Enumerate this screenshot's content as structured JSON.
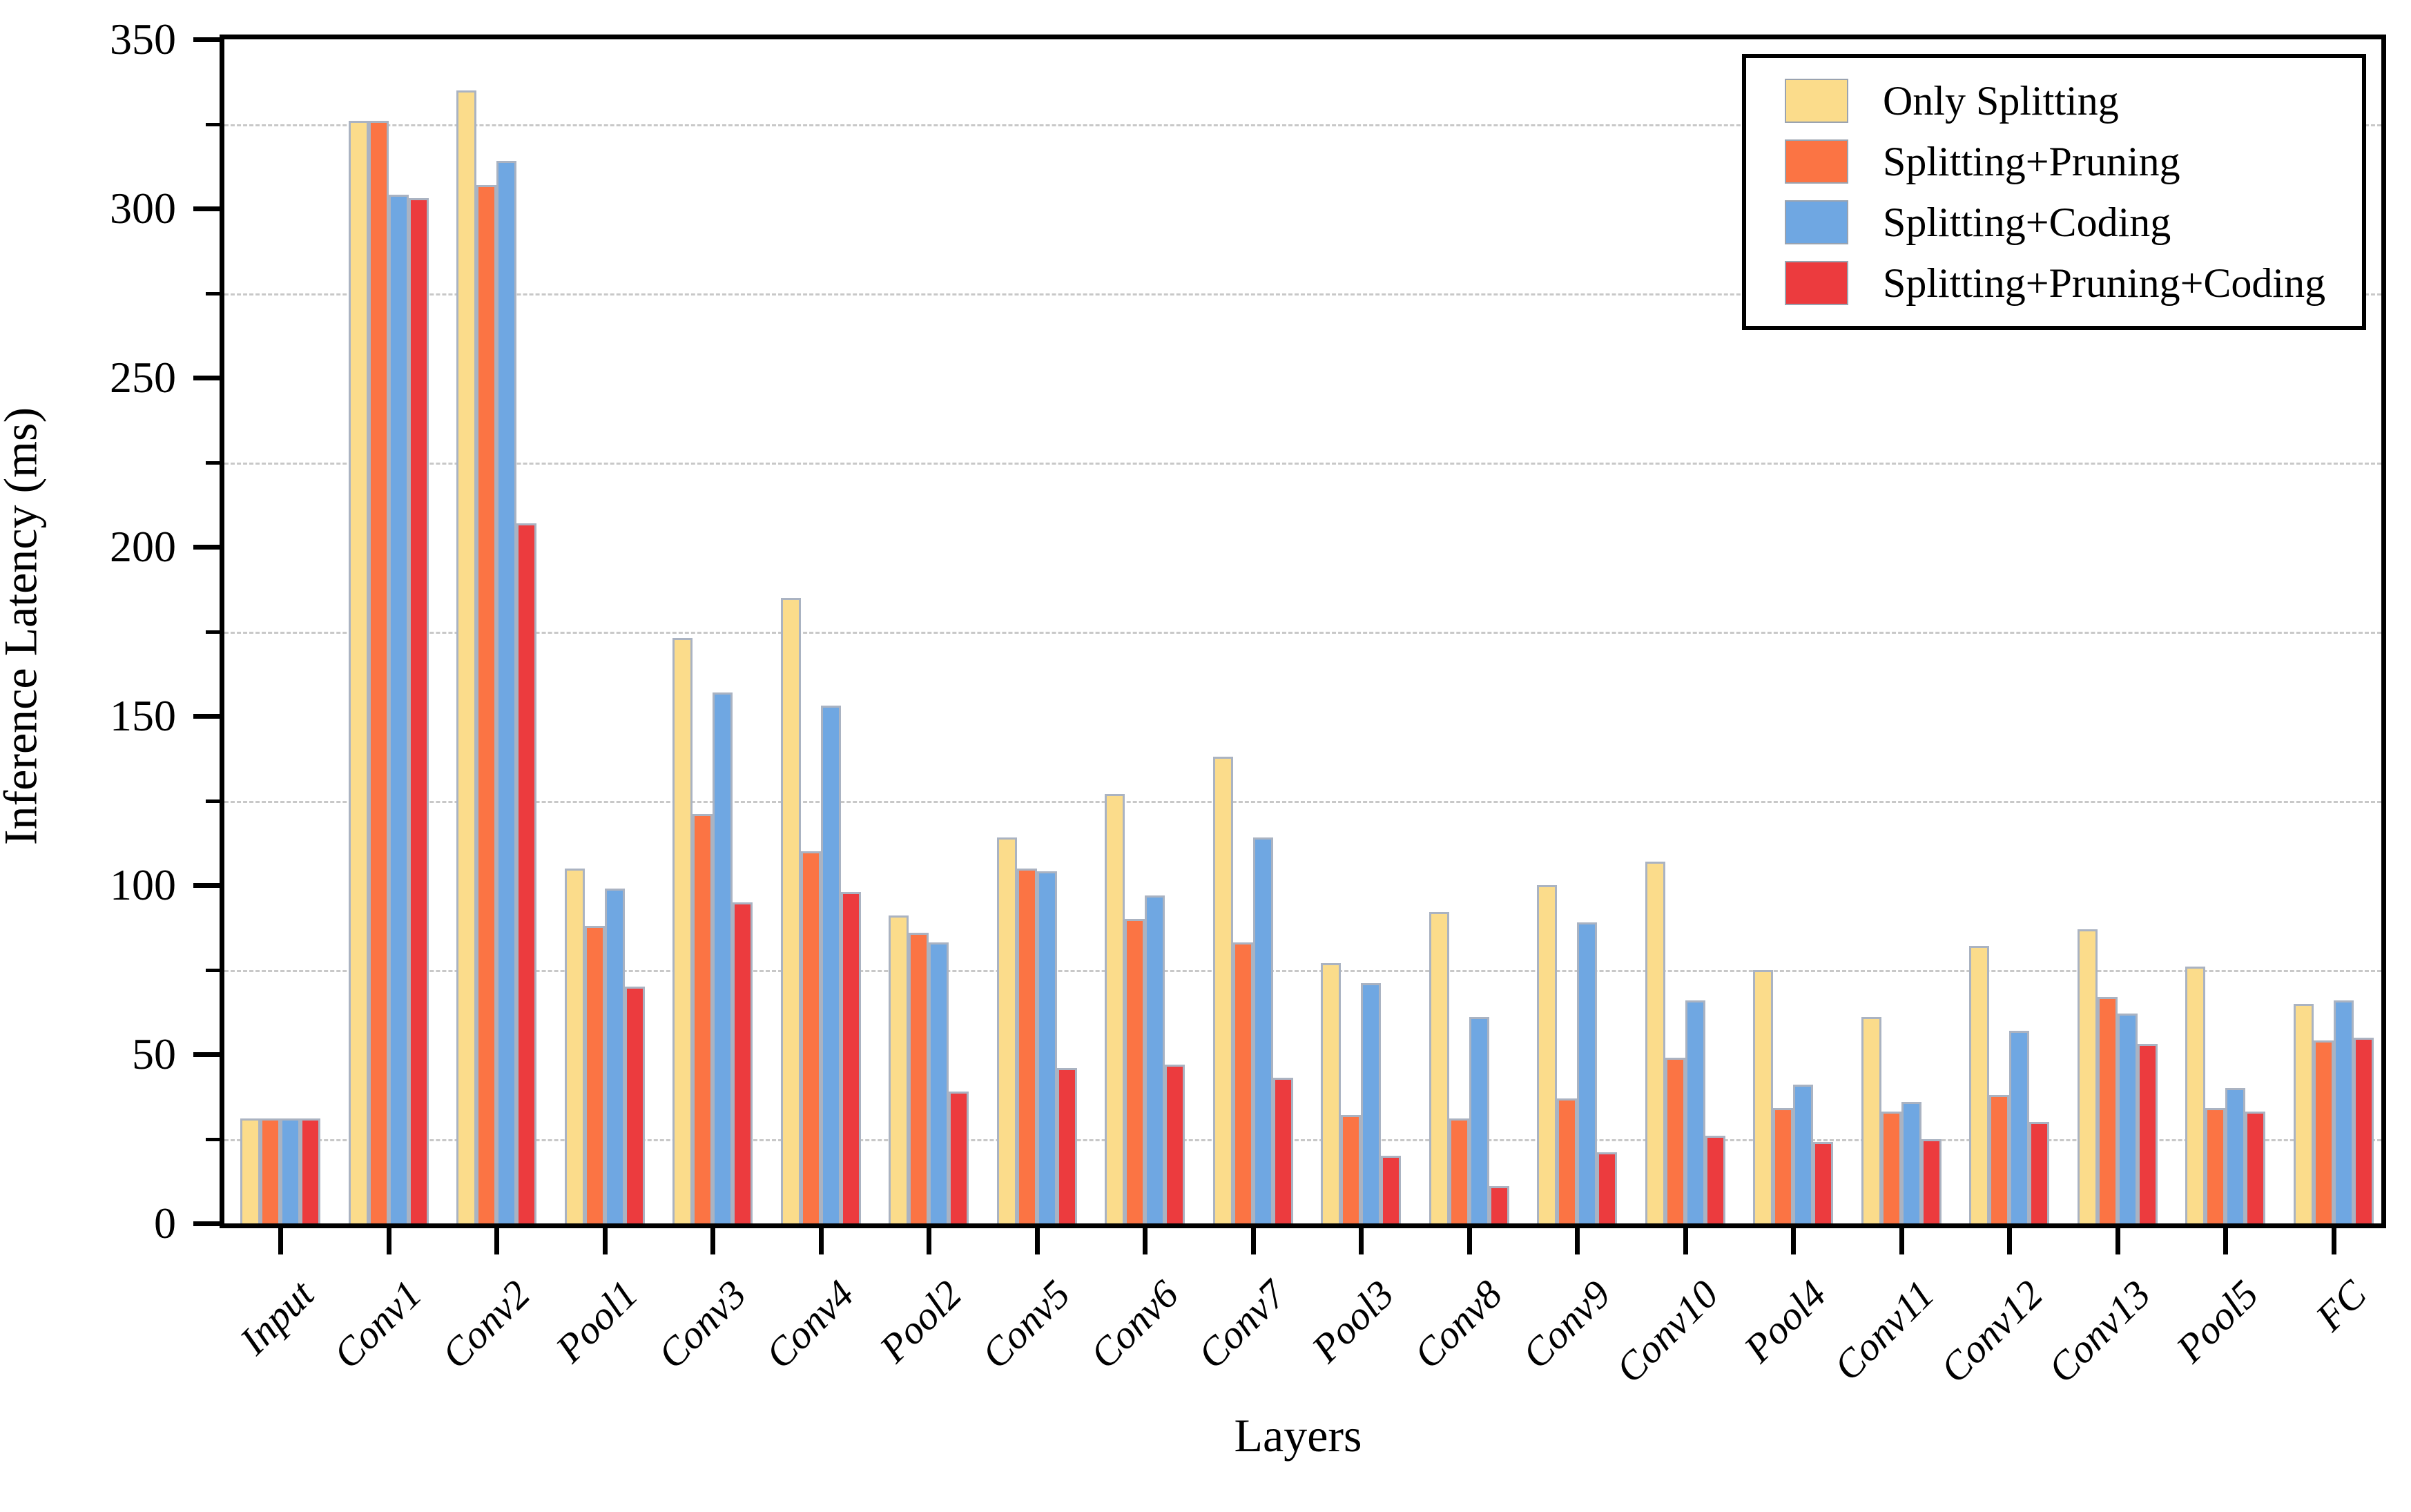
{
  "chart_data": {
    "type": "bar",
    "title": "",
    "xlabel": "Layers",
    "ylabel": "Inference Latency (ms)",
    "ylim": [
      0,
      350
    ],
    "ytick_step": 50,
    "minor_gridline_values": [
      25,
      75,
      125,
      175,
      225,
      275,
      325
    ],
    "grid_on": true,
    "legend_position": "top-right",
    "categories": [
      "Input",
      "Conv1",
      "Conv2",
      "Pool1",
      "Conv3",
      "Conv4",
      "Pool2",
      "Conv5",
      "Conv6",
      "Conv7",
      "Pool3",
      "Conv8",
      "Conv9",
      "Conv10",
      "Pool4",
      "Conv11",
      "Conv12",
      "Conv13",
      "Pool5",
      "FC"
    ],
    "series": [
      {
        "name": "Only Splitting",
        "color": "#FBDC8B",
        "values": [
          31,
          326,
          335,
          105,
          173,
          185,
          91,
          114,
          127,
          138,
          77,
          92,
          100,
          107,
          75,
          61,
          82,
          87,
          76,
          65
        ]
      },
      {
        "name": "Splitting+Pruning",
        "color": "#FB7444",
        "values": [
          31,
          326,
          307,
          88,
          121,
          110,
          86,
          105,
          90,
          83,
          32,
          31,
          37,
          49,
          34,
          33,
          38,
          67,
          34,
          54
        ]
      },
      {
        "name": "Splitting+Coding",
        "color": "#6FA7E2",
        "values": [
          31,
          304,
          314,
          99,
          157,
          153,
          83,
          104,
          97,
          114,
          71,
          61,
          89,
          66,
          41,
          36,
          57,
          62,
          40,
          66
        ]
      },
      {
        "name": "Splitting+Pruning+Coding",
        "color": "#EC3B3E",
        "values": [
          31,
          303,
          207,
          70,
          95,
          98,
          39,
          46,
          47,
          43,
          20,
          11,
          21,
          26,
          24,
          25,
          30,
          53,
          33,
          55
        ]
      }
    ],
    "style": {
      "grid_color": "#c8c8c8",
      "bar_border_color": "#aab3c2",
      "axis_color": "#000000"
    }
  }
}
